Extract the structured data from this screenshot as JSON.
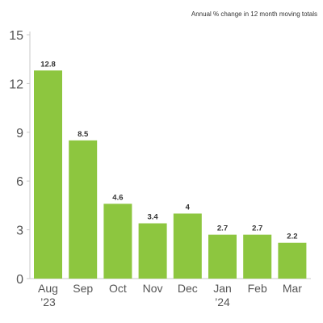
{
  "chart_data": {
    "type": "bar",
    "subtitle": "Annual % change in 12 month moving totals",
    "categories": [
      [
        "Aug",
        "’23"
      ],
      [
        "Sep"
      ],
      [
        "Oct"
      ],
      [
        "Nov"
      ],
      [
        "Dec"
      ],
      [
        "Jan",
        "’24"
      ],
      [
        "Feb"
      ],
      [
        "Mar"
      ]
    ],
    "values": [
      12.8,
      8.5,
      4.6,
      3.4,
      4,
      2.7,
      2.7,
      2.2
    ],
    "data_labels": [
      "12.8",
      "8.5",
      "4.6",
      "3.4",
      "4",
      "2.7",
      "2.7",
      "2.2"
    ],
    "yticks": [
      0,
      3,
      6,
      9,
      12,
      15
    ],
    "ylim": [
      0,
      15
    ],
    "xlabel": "",
    "ylabel": "",
    "grid": false,
    "legend": "none",
    "colors": {
      "bar": "#8dc63f",
      "axis": "#c9c9c9",
      "text": "#555555"
    }
  }
}
